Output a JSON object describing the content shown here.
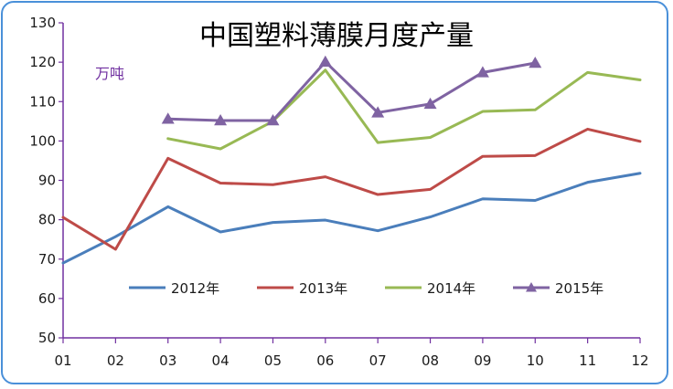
{
  "chart_data": {
    "type": "line",
    "title": "中国塑料薄膜月度产量",
    "unit_label": "万吨",
    "categories": [
      "01",
      "02",
      "03",
      "04",
      "05",
      "06",
      "07",
      "08",
      "09",
      "10",
      "11",
      "12"
    ],
    "ylim": [
      50,
      130
    ],
    "yticks": [
      50,
      60,
      70,
      80,
      90,
      100,
      110,
      120,
      130
    ],
    "grid": false,
    "legend_position": "bottom-center",
    "series": [
      {
        "name": "2012年",
        "color": "#4a7ebb",
        "marker": "none",
        "values": [
          69.0,
          75.7,
          83.3,
          76.9,
          79.3,
          79.9,
          77.2,
          80.7,
          85.3,
          84.9,
          89.5,
          91.8
        ]
      },
      {
        "name": "2013年",
        "color": "#be4b48",
        "marker": "none",
        "values": [
          80.6,
          72.5,
          95.6,
          89.3,
          88.9,
          90.9,
          86.4,
          87.7,
          96.1,
          96.3,
          103.0,
          99.9
        ]
      },
      {
        "name": "2014年",
        "color": "#98b954",
        "marker": "none",
        "values": [
          null,
          null,
          100.6,
          98.0,
          105.0,
          118.0,
          99.6,
          100.9,
          107.5,
          107.9,
          117.4,
          115.5
        ]
      },
      {
        "name": "2015年",
        "color": "#7f63a2",
        "marker": "triangle",
        "values": [
          null,
          null,
          105.6,
          105.2,
          105.2,
          120.1,
          107.2,
          109.4,
          117.4,
          119.8,
          null,
          null
        ]
      }
    ]
  }
}
